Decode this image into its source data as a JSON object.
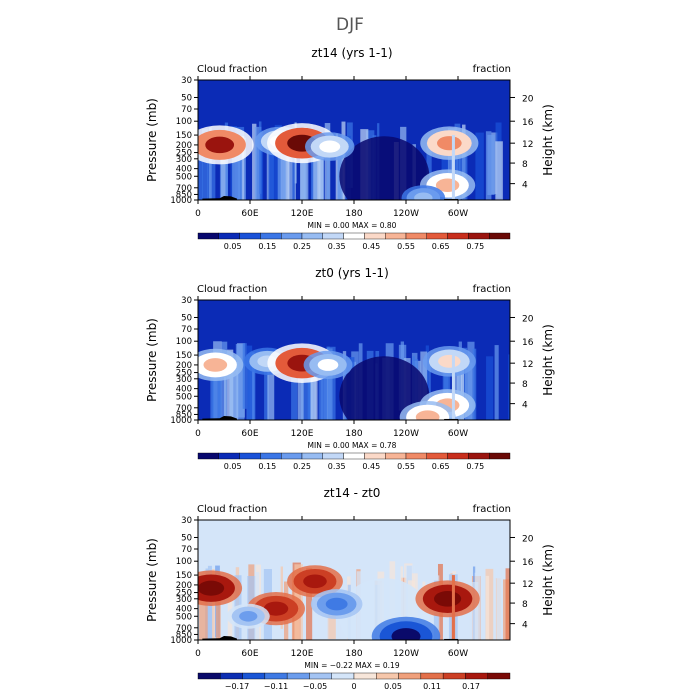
{
  "page_title": "DJF",
  "colors": {
    "cloud_scale": [
      "#08086e",
      "#0b2bb6",
      "#1a52d8",
      "#3b76e6",
      "#6a9bee",
      "#97bcf2",
      "#c2d8f7",
      "#ffffff",
      "#fbd9c8",
      "#f7b496",
      "#f08a66",
      "#e35a3a",
      "#c82e1c",
      "#9a140e",
      "#6a0a06"
    ],
    "diff_scale": [
      "#0a0a6a",
      "#0c2eb2",
      "#1a56d6",
      "#3f7ae4",
      "#6c9ded",
      "#a4c4f3",
      "#d4e5f9",
      "#f7e6da",
      "#f6c7ab",
      "#f0a07b",
      "#e3704a",
      "#cc3f24",
      "#a8180e",
      "#7a0a06"
    ],
    "terrain": "#000000"
  },
  "chart_data": [
    {
      "type": "heatmap",
      "title": "zt14 (yrs 1-1)",
      "left_label": "Cloud fraction",
      "right_label": "fraction",
      "ylabel": "Pressure (mb)",
      "ylabel_right": "Height (km)",
      "stats": "MIN =    0.00   MAX =    0.80",
      "x_ticks": [
        "0",
        "60E",
        "120E",
        "180",
        "120W",
        "60W"
      ],
      "y_ticks": [
        "30",
        "50",
        "70",
        "100",
        "150",
        "200",
        "250",
        "300",
        "400",
        "500",
        "700",
        "850",
        "1000"
      ],
      "height_ticks": [
        "20",
        "16",
        "12",
        "8",
        "4"
      ],
      "colorbar_labels": [
        "0.05",
        "0.15",
        "0.25",
        "0.35",
        "0.45",
        "0.55",
        "0.65",
        "0.75"
      ],
      "value_range": [
        0,
        0.8
      ],
      "features": [
        {
          "lon": 25,
          "p": 200,
          "v": 0.72
        },
        {
          "lon": 95,
          "p": 180,
          "v": 0.42
        },
        {
          "lon": 120,
          "p": 190,
          "v": 0.75
        },
        {
          "lon": 152,
          "p": 210,
          "v": 0.4
        },
        {
          "lon": 290,
          "p": 190,
          "v": 0.55
        },
        {
          "lon": 288,
          "p": 650,
          "v": 0.5
        },
        {
          "lon": 260,
          "p": 940,
          "v": 0.3
        }
      ]
    },
    {
      "type": "heatmap",
      "title": "zt0 (yrs 1-1)",
      "left_label": "Cloud fraction",
      "right_label": "fraction",
      "ylabel": "Pressure (mb)",
      "ylabel_right": "Height (km)",
      "stats": "MIN =    0.00   MAX =    0.78",
      "x_ticks": [
        "0",
        "60E",
        "120E",
        "180",
        "120W",
        "60W"
      ],
      "y_ticks": [
        "30",
        "50",
        "70",
        "100",
        "150",
        "200",
        "250",
        "300",
        "400",
        "500",
        "700",
        "850",
        "1000"
      ],
      "height_ticks": [
        "20",
        "16",
        "12",
        "8",
        "4"
      ],
      "colorbar_labels": [
        "0.05",
        "0.15",
        "0.25",
        "0.35",
        "0.45",
        "0.55",
        "0.65",
        "0.75"
      ],
      "value_range": [
        0,
        0.78
      ],
      "features": [
        {
          "lon": 20,
          "p": 200,
          "v": 0.5
        },
        {
          "lon": 80,
          "p": 180,
          "v": 0.35
        },
        {
          "lon": 120,
          "p": 190,
          "v": 0.72
        },
        {
          "lon": 150,
          "p": 200,
          "v": 0.38
        },
        {
          "lon": 290,
          "p": 180,
          "v": 0.45
        },
        {
          "lon": 288,
          "p": 650,
          "v": 0.5
        },
        {
          "lon": 265,
          "p": 920,
          "v": 0.5
        }
      ]
    },
    {
      "type": "heatmap",
      "title": "zt14 - zt0",
      "left_label": "Cloud fraction",
      "right_label": "fraction",
      "ylabel": "Pressure (mb)",
      "ylabel_right": "Height (km)",
      "stats": "MIN =  −0.22   MAX =    0.19",
      "x_ticks": [
        "0",
        "60E",
        "120E",
        "180",
        "120W",
        "60W"
      ],
      "y_ticks": [
        "30",
        "50",
        "70",
        "100",
        "150",
        "200",
        "250",
        "300",
        "400",
        "500",
        "700",
        "850",
        "1000"
      ],
      "height_ticks": [
        "20",
        "16",
        "12",
        "8",
        "4"
      ],
      "colorbar_labels": [
        "−0.17",
        "−0.11",
        "−0.05",
        "0",
        "0.05",
        "0.11",
        "0.17"
      ],
      "value_range": [
        -0.22,
        0.19
      ],
      "features": [
        {
          "lon": 15,
          "p": 220,
          "v": 0.17
        },
        {
          "lon": 90,
          "p": 400,
          "v": 0.15
        },
        {
          "lon": 135,
          "p": 180,
          "v": 0.14
        },
        {
          "lon": 160,
          "p": 350,
          "v": -0.12
        },
        {
          "lon": 58,
          "p": 500,
          "v": -0.08
        },
        {
          "lon": 288,
          "p": 300,
          "v": 0.18
        },
        {
          "lon": 240,
          "p": 900,
          "v": -0.2
        }
      ]
    }
  ]
}
